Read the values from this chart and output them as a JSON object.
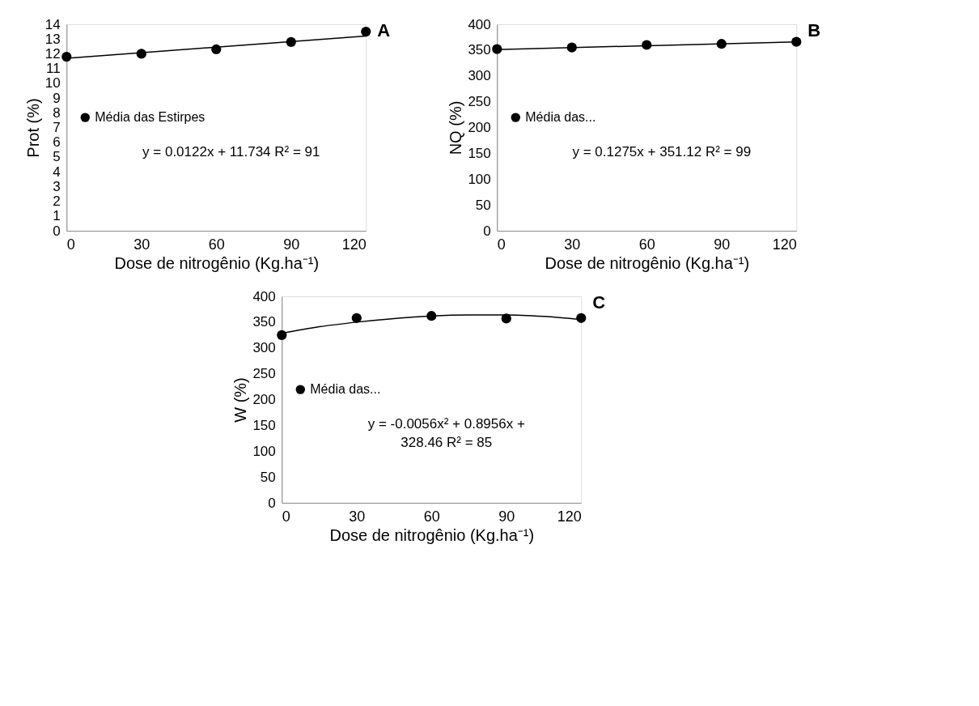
{
  "chart_data": [
    {
      "type": "scatter",
      "xlabel": "Dose de nitrogênio (Kg.ha⁻¹)",
      "ylabel": "Prot (%)",
      "x": [
        0,
        30,
        60,
        90,
        120
      ],
      "xlim": [
        0,
        120
      ],
      "xticks": [
        0,
        30,
        60,
        90,
        120
      ],
      "ylim": [
        0,
        14
      ],
      "yticks": [
        0,
        1,
        2,
        3,
        4,
        5,
        6,
        7,
        8,
        9,
        10,
        11,
        12,
        13,
        14
      ],
      "grid": false,
      "legend": "left",
      "line_style": "solid",
      "annotations": [
        "A",
        "y = 0.0122x + 11.734 R² = 91"
      ],
      "series": [
        {
          "name": "Média das Estirpes",
          "color": "#000000",
          "marker": "circle",
          "values": [
            11.8,
            12.0,
            12.3,
            12.8,
            13.5
          ]
        },
        {
          "type": "line",
          "color": "#000000",
          "marker": "none",
          "x": [
            0,
            120
          ],
          "values": [
            11.7,
            13.2
          ]
        }
      ]
    },
    {
      "type": "scatter",
      "xlabel": "Dose de nitrogênio (Kg.ha⁻¹)",
      "ylabel": "NQ (%)",
      "x": [
        0,
        30,
        60,
        90,
        120
      ],
      "xlim": [
        0,
        120
      ],
      "xticks": [
        0,
        30,
        60,
        90,
        120
      ],
      "ylim": [
        0,
        400
      ],
      "yticks": [
        0,
        50,
        100,
        150,
        200,
        250,
        300,
        350,
        400
      ],
      "grid": false,
      "legend": "left",
      "line_style": "solid",
      "annotations": [
        "B",
        "y = 0.1275x + 351.12 R² = 99"
      ],
      "series": [
        {
          "name": "Média das...",
          "color": "#000000",
          "marker": "circle",
          "values": [
            352,
            355,
            360,
            362,
            366
          ]
        },
        {
          "type": "line",
          "color": "#000000",
          "marker": "none",
          "x": [
            0,
            120
          ],
          "values": [
            351,
            366
          ]
        }
      ]
    },
    {
      "type": "scatter",
      "xlabel": "Dose de nitrogênio (Kg.ha⁻¹)",
      "ylabel": "W (%)",
      "x": [
        0,
        30,
        60,
        90,
        120
      ],
      "xlim": [
        0,
        120
      ],
      "xticks": [
        0,
        30,
        60,
        90,
        120
      ],
      "ylim": [
        0,
        400
      ],
      "yticks": [
        0,
        50,
        100,
        150,
        200,
        250,
        300,
        350,
        400
      ],
      "grid": false,
      "legend": "left",
      "line_style": "solid",
      "annotations": [
        "C",
        "y = -0.0056x² + 0.8956x +\n328.46 R² = 85"
      ],
      "series": [
        {
          "name": "Média das...",
          "color": "#000000",
          "marker": "circle",
          "values": [
            325,
            358,
            362,
            357,
            358
          ]
        },
        {
          "type": "line",
          "color": "#000000",
          "marker": "none",
          "x": [
            0,
            15,
            30,
            45,
            60,
            75,
            90,
            105,
            120
          ],
          "values": [
            328,
            341,
            350,
            357,
            362,
            364,
            364,
            361,
            355
          ]
        }
      ]
    }
  ]
}
